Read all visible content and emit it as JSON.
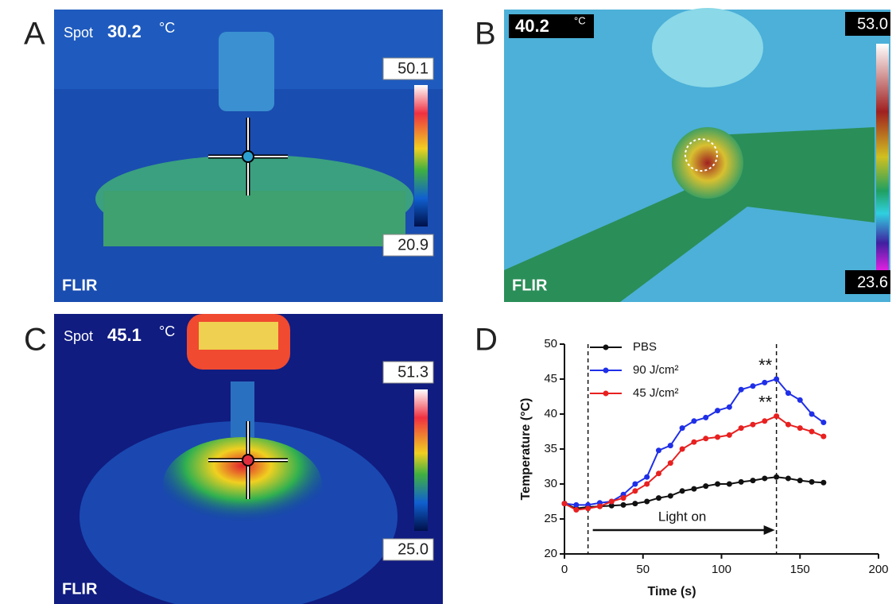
{
  "panels": [
    {
      "letter": "A",
      "spot_label": "Spot",
      "spot_value": "30.2",
      "unit": "°C",
      "scale_max": "50.1",
      "scale_min": "20.9",
      "brand": "FLIR"
    },
    {
      "letter": "B",
      "spot_value": "40.2",
      "unit": "°C",
      "scale_max": "53.0",
      "scale_min": "23.6",
      "brand": "FLIR"
    },
    {
      "letter": "C",
      "spot_label": "Spot",
      "spot_value": "45.1",
      "unit": "°C",
      "scale_max": "51.3",
      "scale_min": "25.0",
      "brand": "FLIR"
    }
  ],
  "chart_letter": "D",
  "chart_data": {
    "type": "line",
    "x_label": "Time (s)",
    "y_label": "Temperature (°C)",
    "x": [
      0,
      7.5,
      15,
      22.5,
      30,
      37.5,
      45,
      52.5,
      60,
      67.5,
      75,
      82.5,
      90,
      97.5,
      105,
      112.5,
      120,
      127.5,
      135,
      142.5,
      150,
      157.5,
      165
    ],
    "series": [
      {
        "name": "PBS",
        "color": "#111111",
        "values": [
          27.2,
          26.5,
          26.7,
          26.8,
          26.9,
          27.0,
          27.2,
          27.5,
          28.0,
          28.3,
          29.0,
          29.3,
          29.7,
          30.0,
          30.0,
          30.3,
          30.5,
          30.8,
          31.0,
          30.8,
          30.5,
          30.3,
          30.2
        ]
      },
      {
        "name": "90 J/cm²",
        "color": "#1f2fe8",
        "values": [
          27.2,
          27.0,
          27.0,
          27.3,
          27.5,
          28.5,
          30.0,
          31.0,
          34.8,
          35.5,
          38.0,
          39.0,
          39.5,
          40.5,
          41.0,
          43.5,
          44.0,
          44.5,
          45.0,
          43.0,
          42.0,
          40.0,
          38.8
        ]
      },
      {
        "name": "45 J/cm²",
        "color": "#e82020",
        "values": [
          27.2,
          26.3,
          26.5,
          26.8,
          27.5,
          28.0,
          29.0,
          30.0,
          31.5,
          33.0,
          35.0,
          36.0,
          36.5,
          36.7,
          37.0,
          38.0,
          38.5,
          39.0,
          39.7,
          38.5,
          38.0,
          37.5,
          36.8
        ]
      }
    ],
    "xlim": [
      0,
      200
    ],
    "xticks": [
      0,
      50,
      100,
      150,
      200
    ],
    "ylim": [
      20,
      50
    ],
    "yticks": [
      20,
      25,
      30,
      35,
      40,
      45,
      50
    ],
    "markers": [
      15,
      135
    ],
    "arrow_label": "Light on",
    "significance": [
      "**",
      "**"
    ]
  }
}
